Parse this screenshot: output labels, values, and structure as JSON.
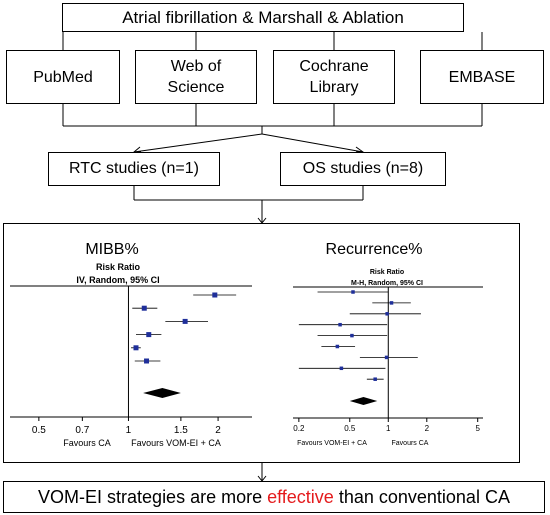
{
  "search": {
    "title": "Atrial fibrillation & Marshall & Ablation"
  },
  "sources": [
    "PubMed",
    "Web of\nScience",
    "Cochrane\nLibrary",
    "EMBASE"
  ],
  "studies": [
    "RTC studies (n=1)",
    "OS studies (n=8)"
  ],
  "forest_left": {
    "heading": "MIBB%",
    "measure": "Risk Ratio",
    "method": "IV, Random, 95% CI",
    "ticks": [
      "0.5",
      "0.7",
      "1",
      "1.5",
      "2"
    ],
    "favours_left": "Favours CA",
    "favours_right": "Favours VOM-EI + CA"
  },
  "forest_right": {
    "heading": "Recurrence%",
    "measure": "Risk Ratio",
    "method": "M-H, Random, 95% CI",
    "ticks": [
      "0.2",
      "0.5",
      "1",
      "2",
      "5"
    ],
    "favours_left": "Favours VOM-EI + CA",
    "favours_right": "Favours CA"
  },
  "conclusion": {
    "before": "VOM-EI strategies are more ",
    "highlight": "effective",
    "after": " than conventional CA"
  },
  "chart_data": [
    {
      "type": "forest",
      "heading": "MIBB%",
      "measure": "Risk Ratio",
      "method": "IV, Random, 95% CI",
      "scale": "log",
      "xlim": [
        0.4,
        2.6
      ],
      "ticks": [
        0.5,
        0.7,
        1,
        1.5,
        2
      ],
      "studies": [
        {
          "rr": 1.95,
          "lo": 1.65,
          "hi": 2.3
        },
        {
          "rr": 1.13,
          "lo": 1.03,
          "hi": 1.25
        },
        {
          "rr": 1.55,
          "lo": 1.33,
          "hi": 1.85
        },
        {
          "rr": 1.17,
          "lo": 1.06,
          "hi": 1.29
        },
        {
          "rr": 1.06,
          "lo": 1.02,
          "hi": 1.1
        },
        {
          "rr": 1.15,
          "lo": 1.05,
          "hi": 1.28
        }
      ],
      "pooled": {
        "rr": 1.3,
        "lo": 1.12,
        "hi": 1.5
      }
    },
    {
      "type": "forest",
      "heading": "Recurrence%",
      "measure": "Risk Ratio",
      "method": "M-H, Random, 95% CI",
      "scale": "log",
      "xlim": [
        0.18,
        5.5
      ],
      "ticks": [
        0.2,
        0.5,
        1,
        2,
        5
      ],
      "studies": [
        {
          "rr": 0.53,
          "lo": 0.28,
          "hi": 1.0
        },
        {
          "rr": 1.06,
          "lo": 0.75,
          "hi": 1.5
        },
        {
          "rr": 0.98,
          "lo": 0.5,
          "hi": 1.8
        },
        {
          "rr": 0.42,
          "lo": 0.2,
          "hi": 0.98
        },
        {
          "rr": 0.52,
          "lo": 0.28,
          "hi": 0.98
        },
        {
          "rr": 0.4,
          "lo": 0.3,
          "hi": 0.55
        },
        {
          "rr": 0.97,
          "lo": 0.6,
          "hi": 1.7
        },
        {
          "rr": 0.43,
          "lo": 0.2,
          "hi": 0.95
        },
        {
          "rr": 0.79,
          "lo": 0.68,
          "hi": 0.92
        }
      ],
      "pooled": {
        "rr": 0.64,
        "lo": 0.5,
        "hi": 0.82
      }
    }
  ]
}
